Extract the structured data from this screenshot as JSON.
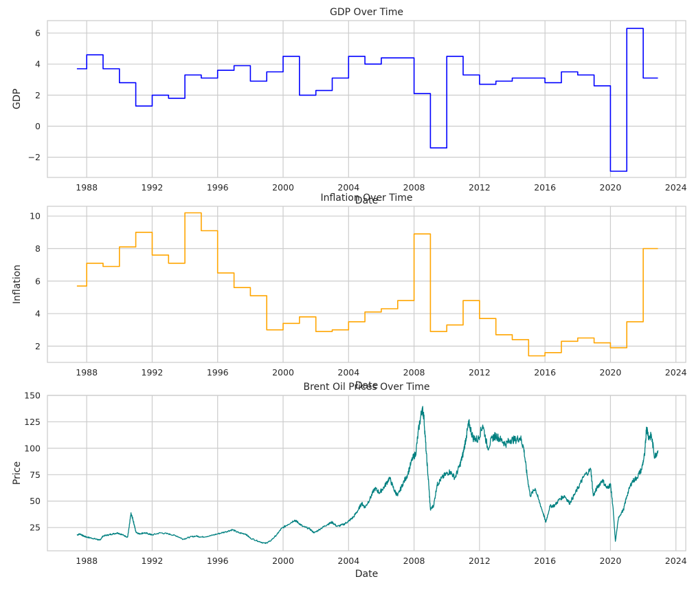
{
  "chart_data": [
    {
      "type": "line",
      "step": true,
      "title": "GDP Over Time",
      "xlabel": "Date",
      "ylabel": "GDP",
      "xlim": [
        1985.6,
        2024.6
      ],
      "ylim": [
        -3.3,
        6.8
      ],
      "xticks": [
        1988,
        1992,
        1996,
        2000,
        2004,
        2008,
        2012,
        2016,
        2020,
        2024
      ],
      "yticks": [
        -2,
        0,
        2,
        4,
        6
      ],
      "grid": true,
      "series": [
        {
          "color": "#0000ff",
          "x": [
            1987.4,
            1988,
            1989,
            1990,
            1991,
            1992,
            1993,
            1994,
            1995,
            1996,
            1997,
            1998,
            1999,
            2000,
            2001,
            2002,
            2003,
            2004,
            2005,
            2006,
            2007,
            2008,
            2009,
            2010,
            2011,
            2012,
            2013,
            2014,
            2015,
            2016,
            2017,
            2018,
            2019,
            2020,
            2021,
            2022,
            2022.9
          ],
          "y": [
            3.7,
            4.6,
            3.7,
            2.8,
            1.3,
            2.0,
            1.8,
            3.3,
            3.1,
            3.6,
            3.9,
            2.9,
            3.5,
            4.5,
            2.0,
            2.3,
            3.1,
            4.5,
            4.0,
            4.4,
            4.4,
            2.1,
            -1.4,
            4.5,
            3.3,
            2.7,
            2.9,
            3.1,
            3.1,
            2.8,
            3.5,
            3.3,
            2.6,
            -2.9,
            6.3,
            3.1,
            3.1
          ]
        }
      ]
    },
    {
      "type": "line",
      "step": true,
      "title": "Inflation Over Time",
      "xlabel": "Date",
      "ylabel": "Inflation",
      "xlim": [
        1985.6,
        2024.6
      ],
      "ylim": [
        1.0,
        10.6
      ],
      "xticks": [
        1988,
        1992,
        1996,
        2000,
        2004,
        2008,
        2012,
        2016,
        2020,
        2024
      ],
      "yticks": [
        2,
        4,
        6,
        8,
        10
      ],
      "grid": true,
      "series": [
        {
          "color": "#ffa500",
          "x": [
            1987.4,
            1988,
            1989,
            1990,
            1991,
            1992,
            1993,
            1994,
            1995,
            1996,
            1997,
            1998,
            1999,
            2000,
            2001,
            2002,
            2003,
            2004,
            2005,
            2006,
            2007,
            2008,
            2009,
            2010,
            2011,
            2012,
            2013,
            2014,
            2015,
            2016,
            2017,
            2018,
            2019,
            2020,
            2021,
            2022,
            2022.9
          ],
          "y": [
            5.7,
            7.1,
            6.9,
            8.1,
            9.0,
            7.6,
            7.1,
            10.2,
            9.1,
            6.5,
            5.6,
            5.1,
            3.0,
            3.4,
            3.8,
            2.9,
            3.0,
            3.5,
            4.1,
            4.3,
            4.8,
            8.9,
            2.9,
            3.3,
            4.8,
            3.7,
            2.7,
            2.4,
            1.4,
            1.6,
            2.3,
            2.5,
            2.2,
            1.9,
            3.5,
            8.0,
            8.0
          ]
        }
      ]
    },
    {
      "type": "line",
      "step": false,
      "title": "Brent Oil Prices Over Time",
      "xlabel": "Date",
      "ylabel": "Price",
      "xlim": [
        1985.6,
        2024.6
      ],
      "ylim": [
        3,
        150
      ],
      "xticks": [
        1988,
        1992,
        1996,
        2000,
        2004,
        2008,
        2012,
        2016,
        2020,
        2024
      ],
      "yticks": [
        25,
        50,
        75,
        100,
        125,
        150
      ],
      "grid": true,
      "series": [
        {
          "color": "#008080",
          "x": [
            1987.4,
            1987.6,
            1987.8,
            1988.0,
            1988.3,
            1988.6,
            1988.8,
            1989.0,
            1989.3,
            1989.6,
            1989.9,
            1990.2,
            1990.5,
            1990.6,
            1990.7,
            1990.8,
            1990.9,
            1991.0,
            1991.2,
            1991.5,
            1991.8,
            1992.0,
            1992.5,
            1993.0,
            1993.5,
            1993.9,
            1994.3,
            1994.7,
            1995.0,
            1995.5,
            1996.0,
            1996.5,
            1996.9,
            1997.3,
            1997.7,
            1998.0,
            1998.5,
            1998.9,
            1999.2,
            1999.6,
            1999.9,
            2000.3,
            2000.7,
            2000.9,
            2001.2,
            2001.6,
            2001.9,
            2002.3,
            2002.7,
            2003.0,
            2003.3,
            2003.7,
            2004.0,
            2004.3,
            2004.6,
            2004.8,
            2005.0,
            2005.3,
            2005.6,
            2005.9,
            2006.2,
            2006.5,
            2006.8,
            2007.0,
            2007.3,
            2007.6,
            2007.9,
            2008.1,
            2008.3,
            2008.5,
            2008.6,
            2008.75,
            2008.9,
            2009.0,
            2009.2,
            2009.4,
            2009.6,
            2009.9,
            2010.2,
            2010.5,
            2010.8,
            2011.0,
            2011.2,
            2011.35,
            2011.6,
            2011.9,
            2012.2,
            2012.5,
            2012.8,
            2013.0,
            2013.3,
            2013.6,
            2013.9,
            2014.2,
            2014.5,
            2014.7,
            2014.9,
            2015.1,
            2015.4,
            2015.6,
            2015.9,
            2016.05,
            2016.3,
            2016.6,
            2016.9,
            2017.2,
            2017.5,
            2017.8,
            2018.1,
            2018.4,
            2018.8,
            2018.95,
            2019.2,
            2019.5,
            2019.8,
            2020.0,
            2020.15,
            2020.3,
            2020.5,
            2020.8,
            2021.0,
            2021.3,
            2021.6,
            2021.9,
            2022.1,
            2022.2,
            2022.35,
            2022.5,
            2022.7,
            2022.9
          ],
          "y": [
            18,
            19,
            17,
            16,
            15,
            14,
            13,
            17,
            18,
            19,
            20,
            18,
            16,
            26,
            38,
            34,
            28,
            21,
            19,
            20,
            19,
            18,
            20,
            19,
            17,
            14,
            16,
            17,
            16,
            17,
            19,
            21,
            23,
            20,
            19,
            15,
            12,
            10,
            12,
            18,
            24,
            28,
            32,
            30,
            26,
            24,
            20,
            24,
            28,
            30,
            26,
            28,
            31,
            35,
            42,
            48,
            44,
            52,
            62,
            58,
            64,
            72,
            60,
            55,
            66,
            75,
            90,
            95,
            120,
            138,
            130,
            95,
            65,
            42,
            46,
            65,
            70,
            75,
            78,
            72,
            84,
            95,
            112,
            124,
            110,
            108,
            122,
            100,
            110,
            112,
            108,
            104,
            108,
            108,
            110,
            100,
            75,
            55,
            62,
            52,
            38,
            30,
            45,
            46,
            52,
            55,
            48,
            56,
            65,
            74,
            80,
            55,
            63,
            70,
            62,
            66,
            45,
            12,
            35,
            42,
            55,
            68,
            72,
            80,
            95,
            120,
            110,
            112,
            92,
            98
          ]
        }
      ]
    }
  ]
}
